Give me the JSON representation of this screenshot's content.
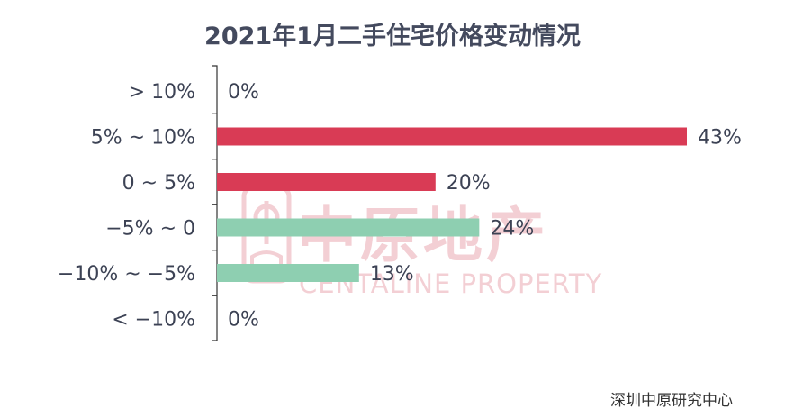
{
  "chart_data": {
    "type": "bar",
    "orientation": "horizontal",
    "title": "2021年1月二手住宅价格变动情况",
    "categories": [
      "> 10%",
      "5% ~ 10%",
      "0 ~ 5%",
      "−5% ~ 0",
      "−10% ~ −5%",
      "< −10%"
    ],
    "values": [
      0,
      43,
      20,
      24,
      13,
      0
    ],
    "value_labels": [
      "0%",
      "43%",
      "20%",
      "24%",
      "13%",
      "0%"
    ],
    "bar_colors": [
      "#d93b55",
      "#d93b55",
      "#d93b55",
      "#8ecfb1",
      "#8ecfb1",
      "#8ecfb1"
    ],
    "xlim": [
      0,
      43
    ],
    "grid": false,
    "legend": "none"
  },
  "watermark": {
    "text_cn": "中原地产",
    "text_en": "CENTALINE PROPERTY",
    "color": "#f3cfd4"
  },
  "source": "深圳中原研究中心"
}
